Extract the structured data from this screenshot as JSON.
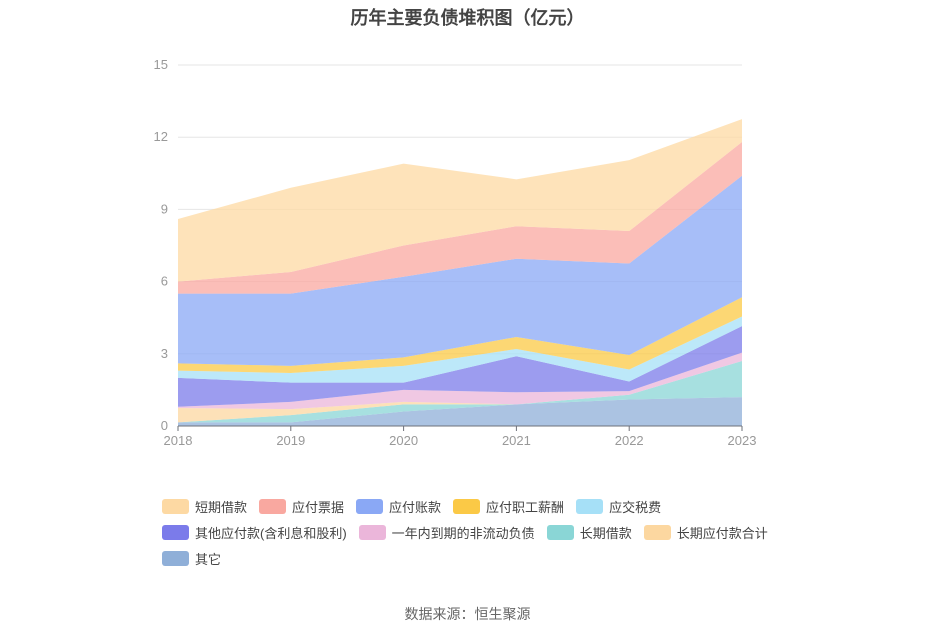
{
  "chart_data": {
    "type": "area",
    "stacked": true,
    "title": "历年主要负债堆积图（亿元）",
    "categories": [
      "2018",
      "2019",
      "2020",
      "2021",
      "2022",
      "2023"
    ],
    "ylim": [
      0,
      15
    ],
    "yticks": [
      "0",
      "3",
      "6",
      "9",
      "12",
      "15"
    ],
    "grid": true,
    "legend_position": "bottom",
    "series": [
      {
        "name": "其它",
        "color": "#8fafd8",
        "values": [
          0.15,
          0.15,
          0.6,
          0.9,
          1.1,
          1.2
        ]
      },
      {
        "name": "长期借款",
        "color": "#8ad6d6",
        "values": [
          0.0,
          0.3,
          0.3,
          0.0,
          0.2,
          1.5
        ]
      },
      {
        "name": "长期应付款合计",
        "color": "#fcd7a0",
        "values": [
          0.6,
          0.25,
          0.1,
          0.0,
          0.0,
          0.0
        ]
      },
      {
        "name": "一年内到期的非流动负债",
        "color": "#ebb6da",
        "values": [
          0.05,
          0.3,
          0.5,
          0.5,
          0.15,
          0.35
        ]
      },
      {
        "name": "其他应付款(含利息和股利)",
        "color": "#7b7bea",
        "values": [
          1.2,
          0.8,
          0.3,
          1.5,
          0.4,
          1.1
        ]
      },
      {
        "name": "应交税费",
        "color": "#a6e0f7",
        "values": [
          0.3,
          0.4,
          0.7,
          0.3,
          0.5,
          0.4
        ]
      },
      {
        "name": "应付职工薪酬",
        "color": "#fbc946",
        "values": [
          0.3,
          0.3,
          0.35,
          0.5,
          0.6,
          0.8
        ]
      },
      {
        "name": "应付账款",
        "color": "#8aa8f5",
        "values": [
          2.9,
          3.0,
          3.35,
          3.25,
          3.8,
          5.05
        ]
      },
      {
        "name": "应付票据",
        "color": "#f9a8a0",
        "values": [
          0.5,
          0.9,
          1.3,
          1.35,
          1.35,
          1.4
        ]
      },
      {
        "name": "短期借款",
        "color": "#fdd9a3",
        "values": [
          2.6,
          3.5,
          3.4,
          1.95,
          2.95,
          0.95
        ]
      }
    ]
  },
  "legend": [
    {
      "label": "短期借款",
      "color": "#fdd9a3"
    },
    {
      "label": "应付票据",
      "color": "#f9a8a0"
    },
    {
      "label": "应付账款",
      "color": "#8aa8f5"
    },
    {
      "label": "应付职工薪酬",
      "color": "#fbc946"
    },
    {
      "label": "应交税费",
      "color": "#a6e0f7"
    },
    {
      "label": "其他应付款(含利息和股利)",
      "color": "#7b7bea"
    },
    {
      "label": "一年内到期的非流动负债",
      "color": "#ebb6da"
    },
    {
      "label": "长期借款",
      "color": "#8ad6d6"
    },
    {
      "label": "长期应付款合计",
      "color": "#fcd7a0"
    },
    {
      "label": "其它",
      "color": "#8fafd8"
    }
  ],
  "source": "数据来源：恒生聚源"
}
